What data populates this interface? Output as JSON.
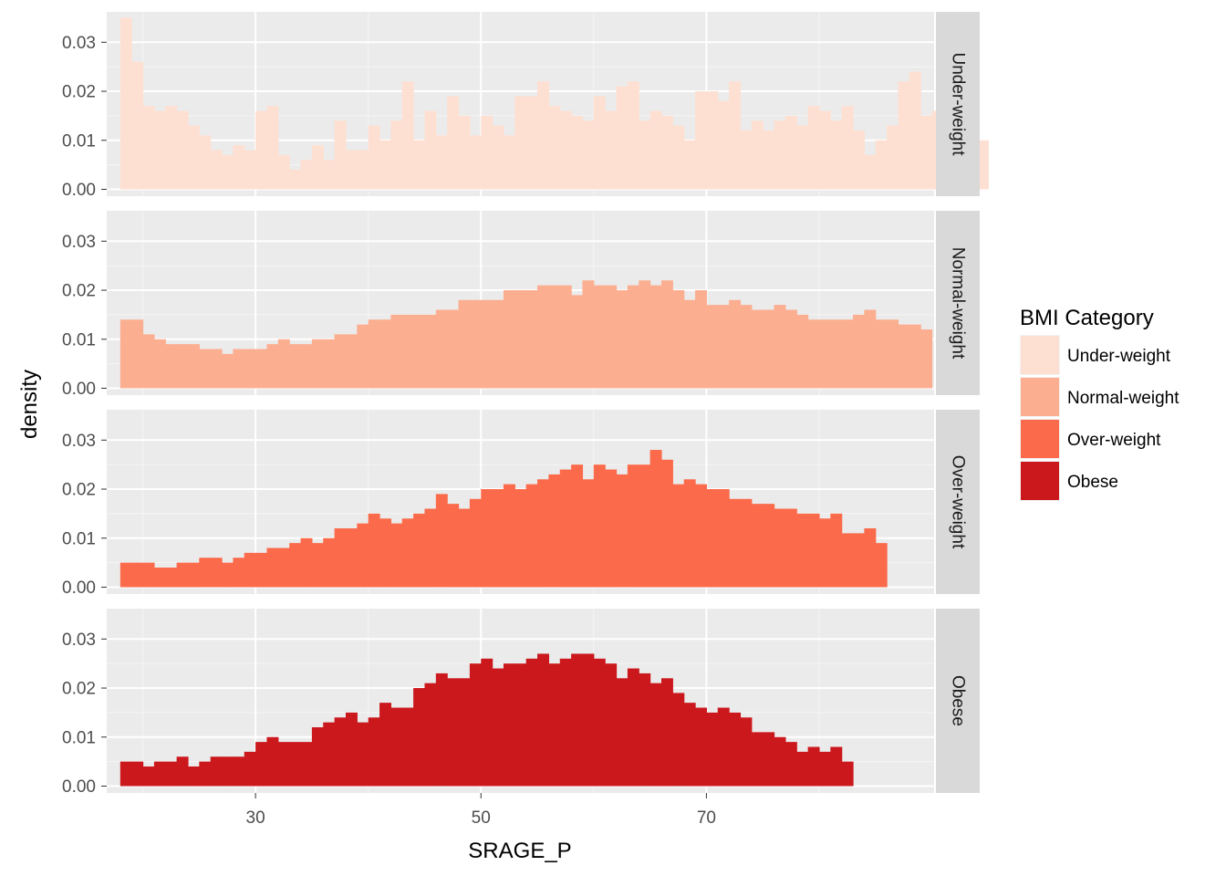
{
  "chart_data": {
    "type": "bar",
    "subtype": "faceted-histogram",
    "xlabel": "SRAGE_P",
    "ylabel": "density",
    "x_ticks": [
      30,
      50,
      70
    ],
    "y_ticks": [
      "0.00",
      "0.01",
      "0.02",
      "0.03"
    ],
    "xlim": [
      16.8,
      90.2
    ],
    "ylim": [
      -0.0014,
      0.0362
    ],
    "bin_start": 18,
    "bin_width": 1,
    "grid": true,
    "legend_position": "right",
    "legend": {
      "title": "BMI Category",
      "entries": [
        {
          "label": "Under-weight",
          "color": "#FEE0D2"
        },
        {
          "label": "Normal-weight",
          "color": "#FCAE91"
        },
        {
          "label": "Over-weight",
          "color": "#FB6A4A"
        },
        {
          "label": "Obese",
          "color": "#CB181D"
        }
      ]
    },
    "series": [
      {
        "name": "Under-weight",
        "color": "#FEE0D2",
        "values": [
          0.035,
          0.026,
          0.017,
          0.016,
          0.017,
          0.016,
          0.013,
          0.011,
          0.008,
          0.007,
          0.009,
          0.008,
          0.016,
          0.017,
          0.007,
          0.004,
          0.006,
          0.009,
          0.006,
          0.014,
          0.008,
          0.008,
          0.013,
          0.01,
          0.014,
          0.022,
          0.01,
          0.016,
          0.011,
          0.019,
          0.015,
          0.011,
          0.015,
          0.013,
          0.011,
          0.019,
          0.019,
          0.022,
          0.017,
          0.016,
          0.015,
          0.014,
          0.019,
          0.016,
          0.021,
          0.022,
          0.014,
          0.016,
          0.015,
          0.013,
          0.01,
          0.02,
          0.02,
          0.018,
          0.022,
          0.012,
          0.014,
          0.012,
          0.014,
          0.015,
          0.013,
          0.017,
          0.016,
          0.014,
          0.017,
          0.012,
          0.007,
          0.01,
          0.013,
          0.022,
          0.024,
          0.015,
          0.016,
          0.016,
          0.026,
          0.017,
          0.01
        ]
      },
      {
        "name": "Normal-weight",
        "color": "#FCAE91",
        "values": [
          0.014,
          0.014,
          0.011,
          0.01,
          0.009,
          0.009,
          0.009,
          0.008,
          0.008,
          0.007,
          0.008,
          0.008,
          0.008,
          0.009,
          0.01,
          0.009,
          0.009,
          0.01,
          0.01,
          0.011,
          0.011,
          0.013,
          0.014,
          0.014,
          0.015,
          0.015,
          0.015,
          0.015,
          0.016,
          0.016,
          0.018,
          0.018,
          0.018,
          0.018,
          0.02,
          0.02,
          0.02,
          0.021,
          0.021,
          0.021,
          0.019,
          0.022,
          0.021,
          0.021,
          0.02,
          0.021,
          0.022,
          0.021,
          0.022,
          0.02,
          0.018,
          0.02,
          0.017,
          0.017,
          0.018,
          0.017,
          0.016,
          0.016,
          0.017,
          0.016,
          0.015,
          0.014,
          0.014,
          0.014,
          0.014,
          0.015,
          0.016,
          0.014,
          0.014,
          0.013,
          0.013,
          0.012
        ]
      },
      {
        "name": "Over-weight",
        "color": "#FB6A4A",
        "values": [
          0.005,
          0.005,
          0.005,
          0.004,
          0.004,
          0.005,
          0.005,
          0.006,
          0.006,
          0.005,
          0.006,
          0.007,
          0.007,
          0.008,
          0.008,
          0.009,
          0.01,
          0.009,
          0.01,
          0.012,
          0.012,
          0.013,
          0.015,
          0.014,
          0.013,
          0.014,
          0.015,
          0.016,
          0.019,
          0.017,
          0.016,
          0.018,
          0.02,
          0.02,
          0.021,
          0.02,
          0.021,
          0.022,
          0.023,
          0.024,
          0.025,
          0.022,
          0.025,
          0.024,
          0.023,
          0.025,
          0.025,
          0.028,
          0.026,
          0.021,
          0.022,
          0.021,
          0.02,
          0.02,
          0.018,
          0.018,
          0.017,
          0.017,
          0.016,
          0.016,
          0.015,
          0.015,
          0.014,
          0.015,
          0.011,
          0.011,
          0.012,
          0.009
        ]
      },
      {
        "name": "Obese",
        "color": "#CB181D",
        "values": [
          0.005,
          0.005,
          0.004,
          0.005,
          0.005,
          0.006,
          0.004,
          0.005,
          0.006,
          0.006,
          0.006,
          0.007,
          0.009,
          0.01,
          0.009,
          0.009,
          0.009,
          0.012,
          0.013,
          0.014,
          0.015,
          0.013,
          0.014,
          0.017,
          0.016,
          0.016,
          0.02,
          0.021,
          0.023,
          0.022,
          0.022,
          0.025,
          0.026,
          0.024,
          0.025,
          0.025,
          0.026,
          0.027,
          0.025,
          0.026,
          0.027,
          0.027,
          0.026,
          0.025,
          0.022,
          0.024,
          0.023,
          0.021,
          0.022,
          0.019,
          0.017,
          0.016,
          0.015,
          0.016,
          0.015,
          0.014,
          0.011,
          0.011,
          0.01,
          0.009,
          0.007,
          0.008,
          0.007,
          0.008,
          0.005
        ]
      }
    ]
  }
}
